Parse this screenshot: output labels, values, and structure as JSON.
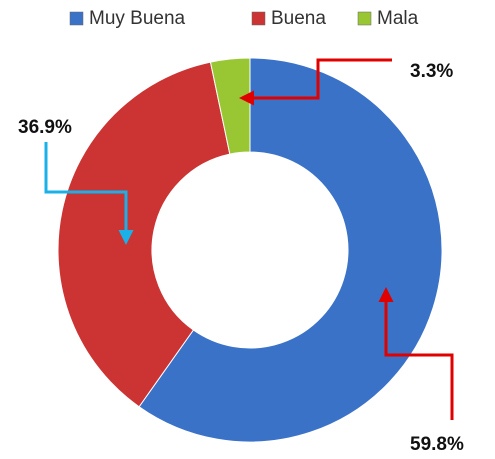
{
  "chart_data": {
    "type": "donut",
    "categories": [
      "Muy Buena",
      "Buena",
      "Mala"
    ],
    "values": [
      59.8,
      36.9,
      3.3
    ],
    "value_labels": [
      "59.8%",
      "36.9%",
      "3.3%"
    ],
    "colors": [
      "#3a72c8",
      "#cc3333",
      "#99c733"
    ]
  }
}
